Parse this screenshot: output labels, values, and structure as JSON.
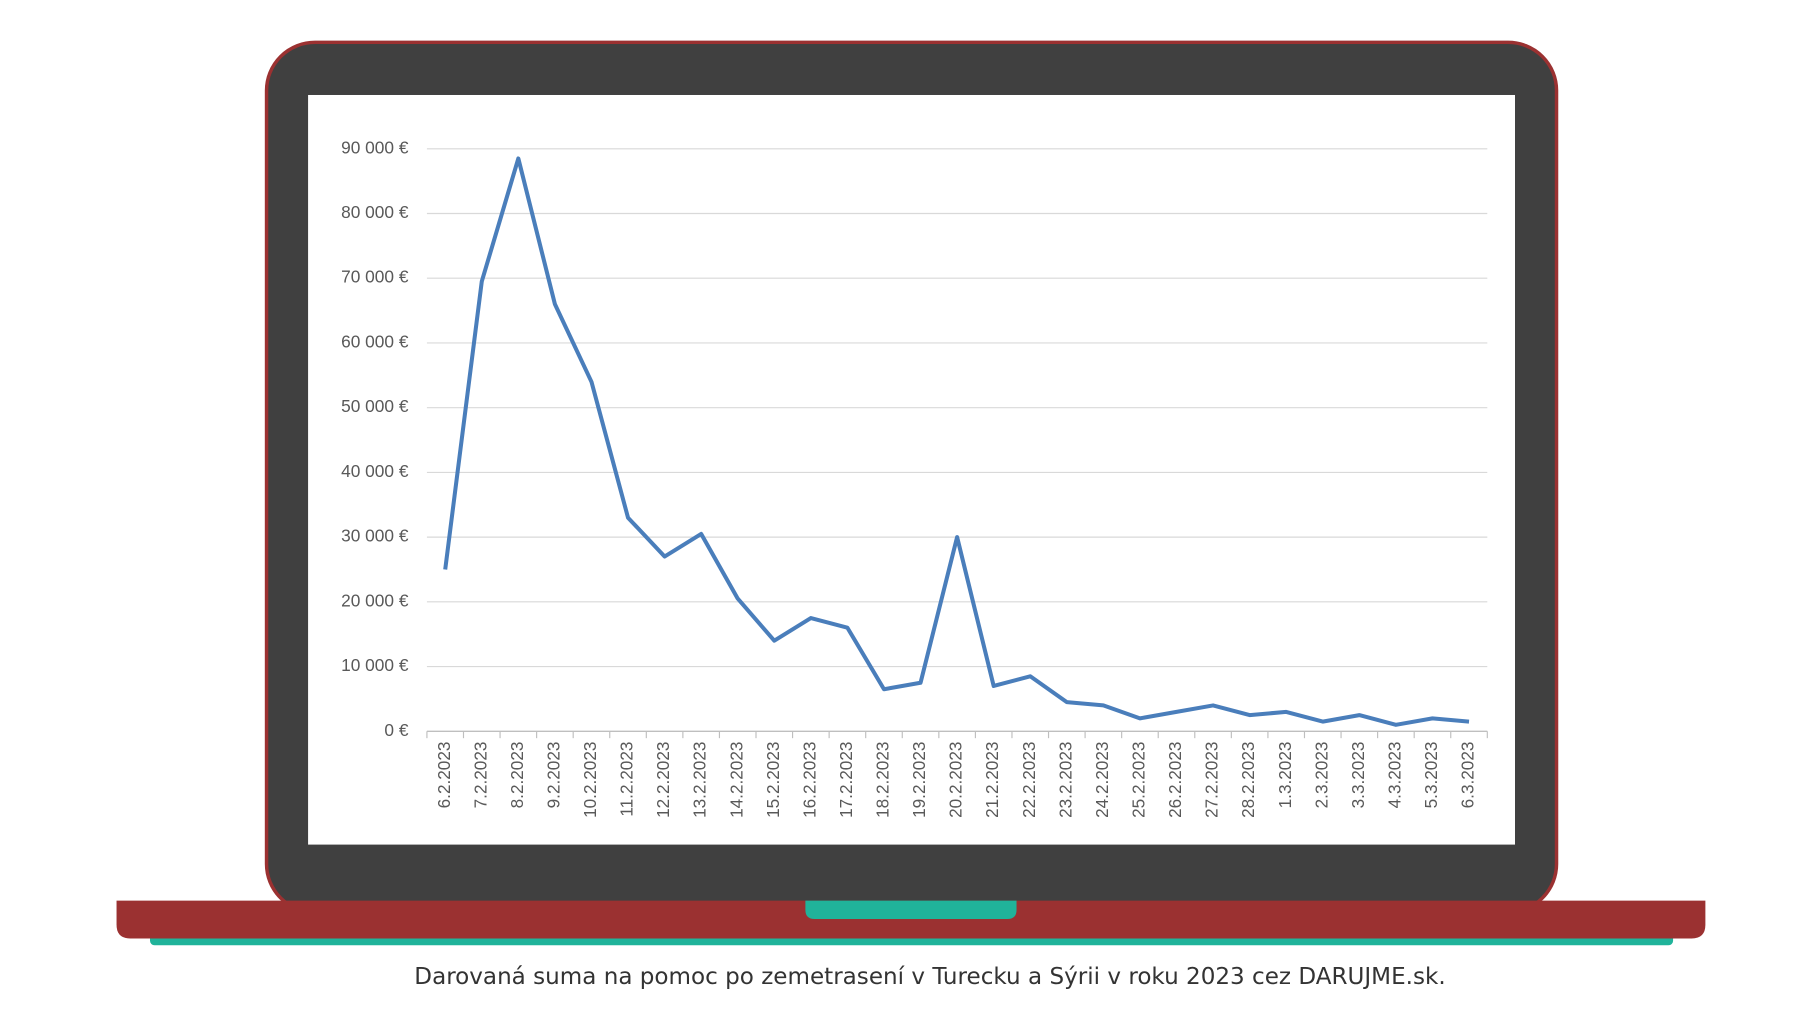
{
  "chart_data": {
    "type": "line",
    "caption": "Darovaná suma na pomoc po zemetrasení v Turecku a Sýrii v roku 2023 cez DARUJME.sk.",
    "categories": [
      "6.2.2023",
      "7.2.2023",
      "8.2.2023",
      "9.2.2023",
      "10.2.2023",
      "11.2.2023",
      "12.2.2023",
      "13.2.2023",
      "14.2.2023",
      "15.2.2023",
      "16.2.2023",
      "17.2.2023",
      "18.2.2023",
      "19.2.2023",
      "20.2.2023",
      "21.2.2023",
      "22.2.2023",
      "23.2.2023",
      "24.2.2023",
      "25.2.2023",
      "26.2.2023",
      "27.2.2023",
      "28.2.2023",
      "1.3.2023",
      "2.3.2023",
      "3.3.2023",
      "4.3.2023",
      "5.3.2023",
      "6.3.2023"
    ],
    "values": [
      25000,
      69500,
      88500,
      66000,
      54000,
      33000,
      27000,
      30500,
      20500,
      14000,
      17500,
      16000,
      6500,
      7500,
      30000,
      7000,
      8500,
      4500,
      4000,
      2000,
      3000,
      4000,
      2500,
      3000,
      1500,
      2500,
      1000,
      2000,
      1500
    ],
    "color": "#4a7ebb",
    "ylim": [
      0,
      90000
    ],
    "yticks": [
      {
        "value": 0,
        "label": "0 €"
      },
      {
        "value": 10000,
        "label": "10 000 €"
      },
      {
        "value": 20000,
        "label": "20 000 €"
      },
      {
        "value": 30000,
        "label": "30 000 €"
      },
      {
        "value": 40000,
        "label": "40 000 €"
      },
      {
        "value": 50000,
        "label": "50 000 €"
      },
      {
        "value": 60000,
        "label": "60 000 €"
      },
      {
        "value": 70000,
        "label": "70 000 €"
      },
      {
        "value": 80000,
        "label": "80 000 €"
      },
      {
        "value": 90000,
        "label": "90 000 €"
      }
    ],
    "grid": true
  }
}
